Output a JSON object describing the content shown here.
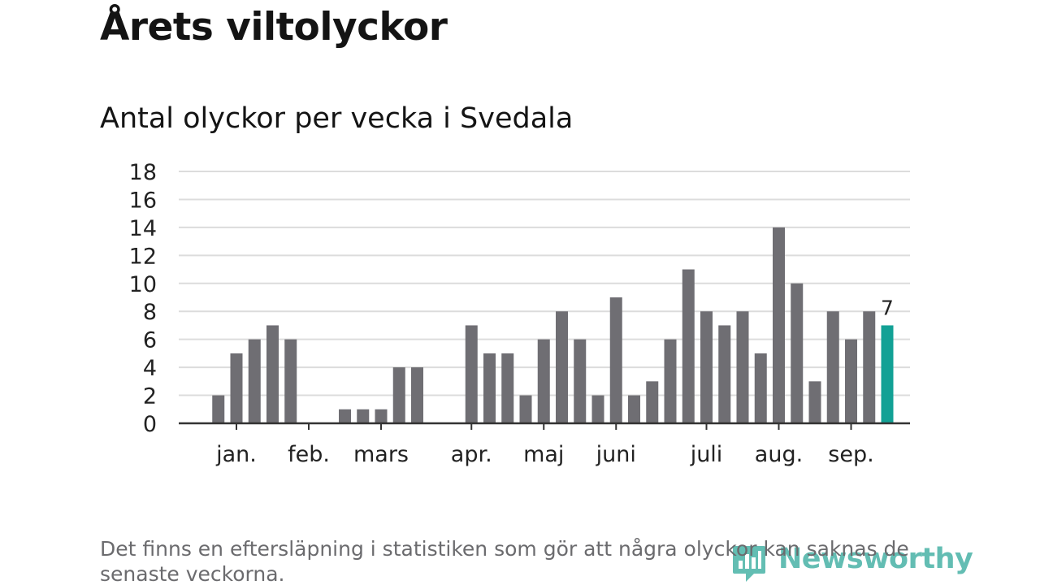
{
  "title": "Årets viltolyckor",
  "subtitle": "Antal olyckor per vecka i Svedala",
  "footnote": "Det finns en eftersläpning i statistiken som gör att några olyckor kan saknas de senaste veckorna.",
  "logo": {
    "text": "Newsworthy",
    "icon": "newsworthy-logo-icon"
  },
  "colors": {
    "bar": "#6f6e73",
    "highlight": "#12a195",
    "grid": "#dcdcdc",
    "axis": "#333333",
    "text": "#222222",
    "logo": "#2fa89a"
  },
  "chart_data": {
    "type": "bar",
    "ylim": [
      0,
      18
    ],
    "yticks": [
      0,
      2,
      4,
      6,
      8,
      10,
      12,
      14,
      16,
      18
    ],
    "grid": true,
    "xlabel": "",
    "ylabel": "",
    "weeks": [
      1,
      2,
      3,
      4,
      5,
      6,
      7,
      8,
      9,
      10,
      11,
      12,
      13,
      14,
      15,
      16,
      17,
      18,
      19,
      20,
      21,
      22,
      23,
      24,
      25,
      26,
      27,
      28,
      29,
      30,
      31,
      32,
      33,
      34,
      35,
      36,
      37,
      38,
      39,
      40
    ],
    "values": [
      0,
      2,
      5,
      6,
      7,
      6,
      0,
      0,
      1,
      1,
      1,
      4,
      4,
      0,
      0,
      7,
      5,
      5,
      2,
      6,
      8,
      6,
      2,
      9,
      2,
      3,
      6,
      11,
      8,
      7,
      8,
      5,
      14,
      10,
      3,
      8,
      6,
      8,
      7,
      null
    ],
    "highlight_index": 38,
    "data_label": "7",
    "month_labels": [
      {
        "label": "jan.",
        "week": 3
      },
      {
        "label": "feb.",
        "week": 7
      },
      {
        "label": "mars",
        "week": 11
      },
      {
        "label": "apr.",
        "week": 16
      },
      {
        "label": "maj",
        "week": 20
      },
      {
        "label": "juni",
        "week": 24
      },
      {
        "label": "juli",
        "week": 29
      },
      {
        "label": "aug.",
        "week": 33
      },
      {
        "label": "sep.",
        "week": 37
      }
    ]
  }
}
